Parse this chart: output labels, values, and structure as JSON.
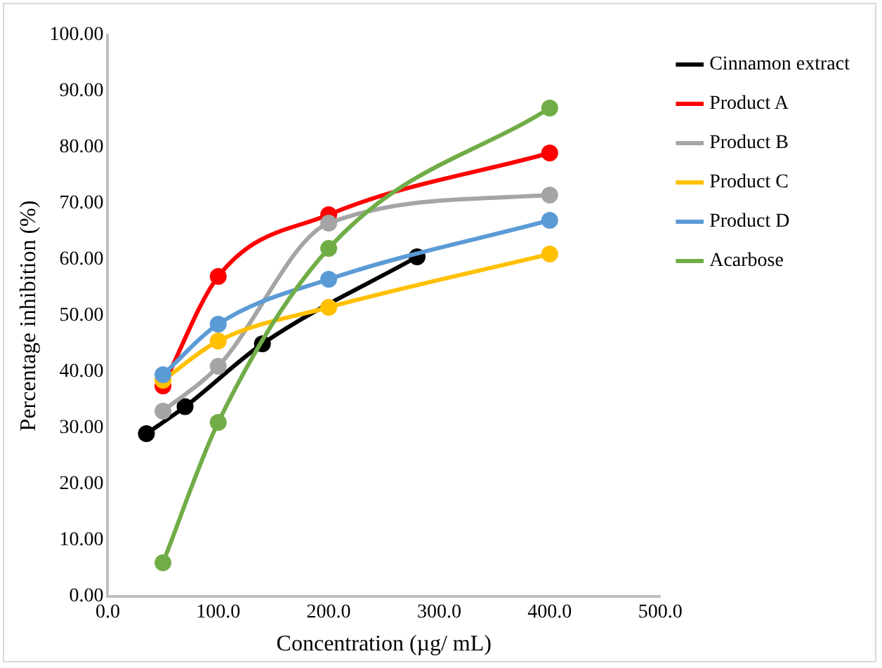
{
  "chart_data": {
    "type": "line",
    "xlabel": "Concentration (µg/ mL)",
    "ylabel": "Percentage inhibition (%)",
    "xlim": [
      0,
      500
    ],
    "xticks": [
      {
        "value": 0,
        "label": "0.0"
      },
      {
        "value": 100,
        "label": "100.0"
      },
      {
        "value": 200,
        "label": "200.0"
      },
      {
        "value": 300,
        "label": "300.0"
      },
      {
        "value": 400,
        "label": "400.0"
      },
      {
        "value": 500,
        "label": "500.0"
      }
    ],
    "ylim": [
      0,
      100
    ],
    "yticks": [
      {
        "value": 0,
        "label": "0.00"
      },
      {
        "value": 10,
        "label": "10.00"
      },
      {
        "value": 20,
        "label": "20.00"
      },
      {
        "value": 30,
        "label": "30.00"
      },
      {
        "value": 40,
        "label": "40.00"
      },
      {
        "value": 50,
        "label": "50.00"
      },
      {
        "value": 60,
        "label": "60.00"
      },
      {
        "value": 70,
        "label": "70.00"
      },
      {
        "value": 80,
        "label": "80.00"
      },
      {
        "value": 90,
        "label": "90.00"
      },
      {
        "value": 100,
        "label": "100.00"
      }
    ],
    "grid": false,
    "legend": "right",
    "marker": "circle",
    "line_style": "solid",
    "series": [
      {
        "name": "Cinnamon extract",
        "color": "#000000",
        "x": [
          35,
          70,
          140,
          280
        ],
        "values": [
          29,
          33.8,
          45,
          60.5
        ]
      },
      {
        "name": "Product A",
        "color": "#ff0000",
        "x": [
          50,
          100,
          200,
          400
        ],
        "values": [
          37.5,
          57,
          68,
          79
        ]
      },
      {
        "name": "Product B",
        "color": "#a5a5a5",
        "x": [
          50,
          100,
          200,
          400
        ],
        "values": [
          33,
          41,
          66.5,
          71.5
        ]
      },
      {
        "name": "Product C",
        "color": "#ffc000",
        "x": [
          50,
          100,
          200,
          400
        ],
        "values": [
          38.5,
          45.5,
          51.5,
          61
        ]
      },
      {
        "name": "Product D",
        "color": "#5b9bd5",
        "x": [
          50,
          100,
          200,
          400
        ],
        "values": [
          39.5,
          48.5,
          56.5,
          67
        ]
      },
      {
        "name": "Acarbose",
        "color": "#70ad47",
        "x": [
          50,
          100,
          200,
          400
        ],
        "values": [
          6,
          31,
          62,
          87
        ]
      }
    ]
  }
}
